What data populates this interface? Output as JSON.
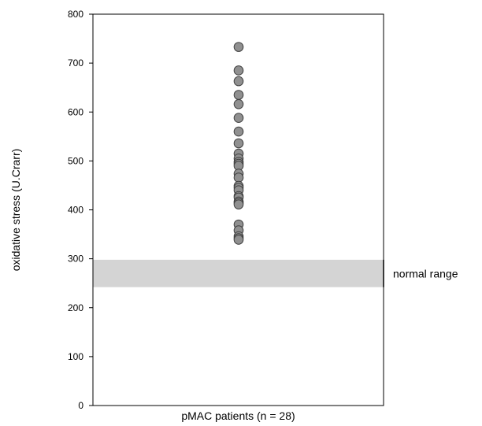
{
  "chart_data": {
    "type": "scatter",
    "title": "",
    "xlabel": "pMAC patients (n = 28)",
    "ylabel": "oxidative stress (U.Crarr)",
    "ylim": [
      0,
      800
    ],
    "yticks": [
      0,
      100,
      200,
      300,
      400,
      500,
      600,
      700,
      800
    ],
    "grid": false,
    "normal_range": {
      "low": 242,
      "high": 298,
      "label": "normal range"
    },
    "series": [
      {
        "marker": "circle",
        "color": "#909090",
        "values": [
          733,
          685,
          663,
          635,
          616,
          588,
          560,
          536,
          515,
          505,
          498,
          494,
          490,
          474,
          466,
          449,
          445,
          440,
          428,
          425,
          417,
          414,
          411,
          370,
          358,
          346,
          342,
          339
        ]
      }
    ]
  },
  "colors": {
    "band": "#d4d4d4",
    "marker_fill": "#909090",
    "marker_stroke": "#3f3f3f",
    "axis": "#000000"
  }
}
